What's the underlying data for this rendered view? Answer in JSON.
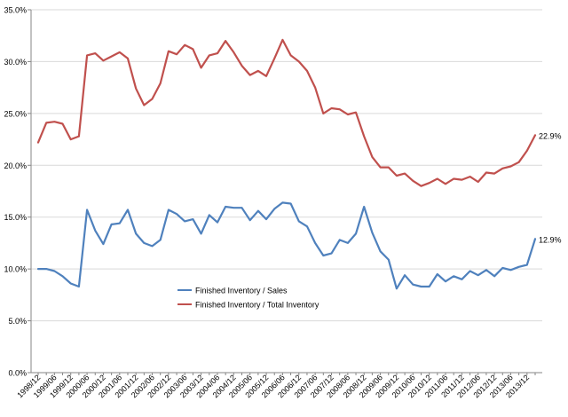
{
  "colors": {
    "inventory_sales": "#4f81bd",
    "inventory_total": "#c0504d",
    "grid": "#d9d9d9",
    "axis": "#868686",
    "text": "#000000"
  },
  "chart_data": {
    "type": "line",
    "title": "",
    "xlabel": "",
    "ylabel": "",
    "ylim": [
      0,
      35
    ],
    "y_ticks": [
      0,
      5,
      10,
      15,
      20,
      25,
      30,
      35
    ],
    "y_tick_labels": [
      "0.0%",
      "5.0%",
      "10.0%",
      "15.0%",
      "20.0%",
      "25.0%",
      "30.0%",
      "35.0%"
    ],
    "grid": "horizontal",
    "legend_position": "center-left (inside plot)",
    "x": [
      "1998/12",
      "1999/03",
      "1999/06",
      "1999/09",
      "1999/12",
      "2000/03",
      "2000/06",
      "2000/09",
      "2000/12",
      "2001/03",
      "2001/06",
      "2001/09",
      "2001/12",
      "2002/03",
      "2002/06",
      "2002/09",
      "2002/12",
      "2003/03",
      "2003/06",
      "2003/09",
      "2003/12",
      "2004/03",
      "2004/06",
      "2004/09",
      "2004/12",
      "2005/03",
      "2005/06",
      "2005/09",
      "2005/12",
      "2006/03",
      "2006/06",
      "2006/09",
      "2006/12",
      "2007/03",
      "2007/06",
      "2007/09",
      "2007/12",
      "2008/03",
      "2008/06",
      "2008/09",
      "2008/12",
      "2009/03",
      "2009/06",
      "2009/09",
      "2009/12",
      "2010/03",
      "2010/06",
      "2010/09",
      "2010/12",
      "2011/03",
      "2011/06",
      "2011/09",
      "2011/12",
      "2012/03",
      "2012/06",
      "2012/09",
      "2012/12",
      "2013/03",
      "2013/06",
      "2013/09",
      "2013/12",
      "2014/03"
    ],
    "x_tick_labels": [
      "1998/12",
      "1999/06",
      "1999/12",
      "2000/06",
      "2000/12",
      "2001/06",
      "2001/12",
      "2002/06",
      "2002/12",
      "2003/06",
      "2003/12",
      "2004/06",
      "2004/12",
      "2005/06",
      "2005/12",
      "2006/06",
      "2006/12",
      "2007/06",
      "2007/12",
      "2008/06",
      "2008/12",
      "2009/06",
      "2009/12",
      "2010/06",
      "2010/12",
      "2011/06",
      "2011/12",
      "2012/06",
      "2012/12",
      "2013/06",
      "2013/12"
    ],
    "series": [
      {
        "name": "Finished Inventory / Sales",
        "color_key": "inventory_sales",
        "end_label": "12.9%",
        "values": [
          10.0,
          10.0,
          9.8,
          9.3,
          8.6,
          8.3,
          15.7,
          13.7,
          12.4,
          14.3,
          14.4,
          15.7,
          13.4,
          12.5,
          12.2,
          12.8,
          15.7,
          15.3,
          14.6,
          14.8,
          13.4,
          15.2,
          14.5,
          16.0,
          15.9,
          15.9,
          14.7,
          15.6,
          14.8,
          15.8,
          16.4,
          16.3,
          14.6,
          14.1,
          12.5,
          11.3,
          11.5,
          12.8,
          12.5,
          13.4,
          16.0,
          13.5,
          11.7,
          10.9,
          8.1,
          9.4,
          8.5,
          8.3,
          8.3,
          9.5,
          8.8,
          9.3,
          9.0,
          9.8,
          9.4,
          9.9,
          9.3,
          10.1,
          9.9,
          10.2,
          10.4,
          12.9
        ]
      },
      {
        "name": "Finished Inventory / Total Inventory",
        "color_key": "inventory_total",
        "end_label": "22.9%",
        "values": [
          22.2,
          24.1,
          24.2,
          24.0,
          22.5,
          22.8,
          30.6,
          30.8,
          30.1,
          30.5,
          30.9,
          30.3,
          27.4,
          25.8,
          26.4,
          27.9,
          31.0,
          30.7,
          31.6,
          31.2,
          29.4,
          30.6,
          30.8,
          32.0,
          30.9,
          29.6,
          28.7,
          29.1,
          28.6,
          30.3,
          32.1,
          30.6,
          30.0,
          29.1,
          27.5,
          25.0,
          25.5,
          25.4,
          24.9,
          25.1,
          22.8,
          20.8,
          19.8,
          19.8,
          19.0,
          19.2,
          18.5,
          18.0,
          18.3,
          18.7,
          18.2,
          18.7,
          18.6,
          18.9,
          18.4,
          19.3,
          19.2,
          19.7,
          19.9,
          20.3,
          21.4,
          22.9
        ]
      }
    ]
  }
}
